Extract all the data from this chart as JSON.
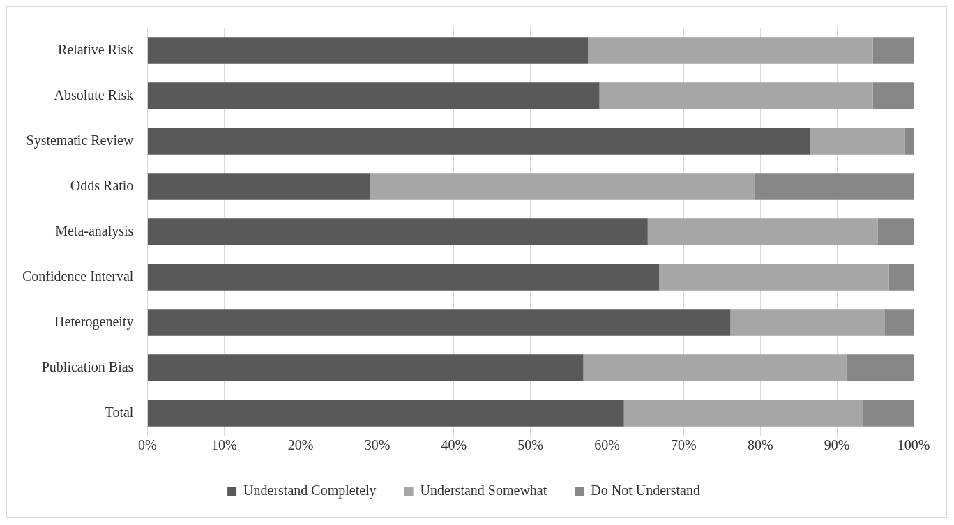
{
  "chart_data": {
    "type": "bar",
    "orientation": "horizontal",
    "stacked": true,
    "categories": [
      "Relative Risk",
      "Absolute Risk",
      "Systematic Review",
      "Odds Ratio",
      "Meta-analysis",
      "Confidence Interval",
      "Heterogeneity",
      "Publication Bias",
      "Total"
    ],
    "series": [
      {
        "name": "Understand Completely",
        "color": "#595959",
        "values": [
          57.5,
          59.0,
          86.5,
          29.1,
          65.3,
          66.8,
          76.1,
          56.9,
          62.2
        ]
      },
      {
        "name": "Understand Somewhat",
        "color": "#a6a6a6",
        "values": [
          37.2,
          35.7,
          12.4,
          50.2,
          30.0,
          30.0,
          20.1,
          34.3,
          31.2
        ]
      },
      {
        "name": "Do Not Understand",
        "color": "#878787",
        "values": [
          5.3,
          5.3,
          1.1,
          20.7,
          4.7,
          3.2,
          3.8,
          8.8,
          6.6
        ]
      }
    ],
    "xlim": [
      0,
      100
    ],
    "xticks": [
      {
        "value": 0,
        "label": "0%"
      },
      {
        "value": 10,
        "label": "10%"
      },
      {
        "value": 20,
        "label": "20%"
      },
      {
        "value": 30,
        "label": "30%"
      },
      {
        "value": 40,
        "label": "40%"
      },
      {
        "value": 50,
        "label": "50%"
      },
      {
        "value": 60,
        "label": "60%"
      },
      {
        "value": 70,
        "label": "70%"
      },
      {
        "value": 80,
        "label": "80%"
      },
      {
        "value": 90,
        "label": "90%"
      },
      {
        "value": 100,
        "label": "100%"
      }
    ],
    "grid": "x",
    "legend": "bottom"
  }
}
